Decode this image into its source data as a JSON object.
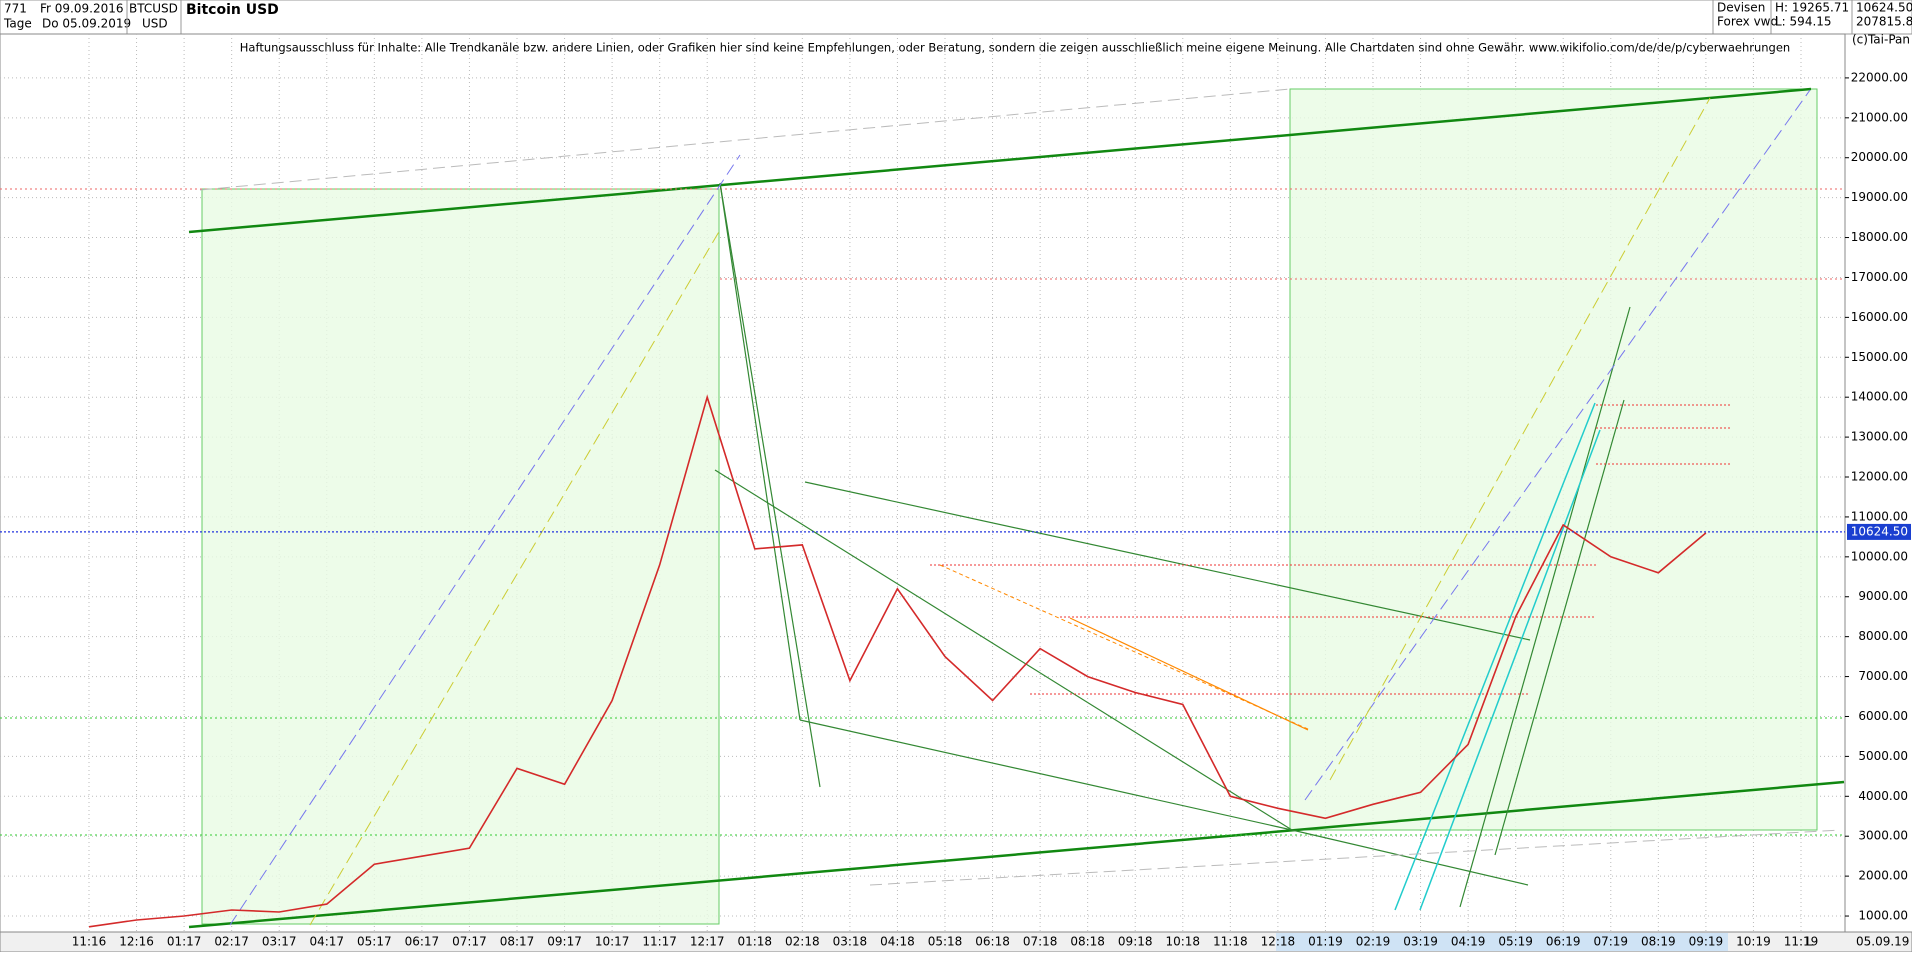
{
  "header": {
    "period": "771",
    "start": "Fr 09.09.2016",
    "interval": "Tage",
    "end": "Do 05.09.2019",
    "symbol": "BTCUSD",
    "currency": "USD",
    "source": "Devisen",
    "feed": "Forex vwd",
    "high": "H: 19265.71",
    "low": "L: 594.15",
    "last": "10624.50",
    "volume": "207815.8/",
    "copyright": "(c)Tai-Pan",
    "date_end": "05.09.19",
    "scale_mode": "L"
  },
  "chart_data": {
    "type": "line",
    "title": "Bitcoin USD",
    "annotations": [
      "Haftungsausschluss für Inhalte: Alle Trendkanäle bzw. andere Linien, oder Grafiken hier sind keine Empfehlungen, oder Beratung, sondern die zeigen ausschließlich meine eigene Meinung. Alle Chartdaten sind ohne Gewähr.  www.wikifolio.com/de/de/p/cyberwaehrungen"
    ],
    "categories": [
      "11:16",
      "12:16",
      "01:17",
      "02:17",
      "03:17",
      "04:17",
      "05:17",
      "06:17",
      "07:17",
      "08:17",
      "09:17",
      "10:17",
      "11:17",
      "12:17",
      "01:18",
      "02:18",
      "03:18",
      "04:18",
      "05:18",
      "06:18",
      "07:18",
      "08:18",
      "09:18",
      "10:18",
      "11:18",
      "12:18",
      "01:19",
      "02:19",
      "03:19",
      "04:19",
      "05:19",
      "06:19",
      "07:19",
      "08:19",
      "09:19",
      "10:19",
      "11:19"
    ],
    "series": [
      {
        "name": "BTCUSD",
        "color": "#d42a2a",
        "values": [
          730,
          900,
          1000,
          1150,
          1100,
          1300,
          2300,
          2500,
          2700,
          4700,
          4300,
          6400,
          9800,
          14000,
          10200,
          10300,
          6900,
          9200,
          7500,
          6400,
          7700,
          7000,
          6600,
          6300,
          4000,
          3700,
          3450,
          3800,
          4100,
          5300,
          8500,
          10800,
          10000,
          9600,
          10600,
          null,
          null
        ]
      }
    ],
    "current_price": {
      "value": 10624.5,
      "label": "10624.50"
    },
    "ylim": [
      600,
      23100
    ],
    "yticks": [
      {
        "value": 1000,
        "label": "1000.00"
      },
      {
        "value": 2000,
        "label": "2000.00"
      },
      {
        "value": 3000,
        "label": "3000.00"
      },
      {
        "value": 4000,
        "label": "4000.00"
      },
      {
        "value": 5000,
        "label": "5000.00"
      },
      {
        "value": 6000,
        "label": "6000.00"
      },
      {
        "value": 7000,
        "label": "7000.00"
      },
      {
        "value": 8000,
        "label": "8000.00"
      },
      {
        "value": 9000,
        "label": "9000.00"
      },
      {
        "value": 10000,
        "label": "10000.00"
      },
      {
        "value": 11000,
        "label": "11000.00"
      },
      {
        "value": 12000,
        "label": "12000.00"
      },
      {
        "value": 13000,
        "label": "13000.00"
      },
      {
        "value": 14000,
        "label": "14000.00"
      },
      {
        "value": 15000,
        "label": "15000.00"
      },
      {
        "value": 16000,
        "label": "16000.00"
      },
      {
        "value": 17000,
        "label": "17000.00"
      },
      {
        "value": 18000,
        "label": "18000.00"
      },
      {
        "value": 19000,
        "label": "19000.00"
      },
      {
        "value": 20000,
        "label": "20000.00"
      },
      {
        "value": 21000,
        "label": "21000.00"
      },
      {
        "value": 22000,
        "label": "22000.00"
      }
    ],
    "grid": true
  }
}
